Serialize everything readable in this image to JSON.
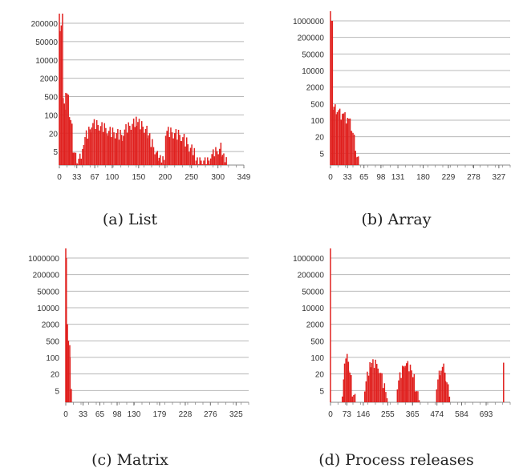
{
  "chart_data": [
    {
      "type": "bar",
      "panel": "a",
      "caption": "(a) List",
      "y_scale": "log",
      "ytick_labels": [
        "5",
        "20",
        "100",
        "500",
        "2000",
        "10000",
        "50000",
        "200000"
      ],
      "xtick_labels": [
        "0",
        "33",
        "67",
        "100",
        "150",
        "200",
        "250",
        "300",
        "349"
      ],
      "xtick_values": [
        0,
        33,
        67,
        100,
        150,
        200,
        250,
        300,
        349
      ],
      "xlim": [
        0,
        349
      ],
      "bar_color": "#e0201e",
      "segments": [
        {
          "x": [
            0,
            6
          ],
          "y": [
            200000,
            200000
          ]
        },
        {
          "x": [
            6,
            11
          ],
          "y": [
            800,
            120
          ]
        },
        {
          "x": [
            11,
            18
          ],
          "y": [
            1200,
            300
          ]
        },
        {
          "x": [
            18,
            25
          ],
          "y": [
            150,
            20
          ]
        },
        {
          "x": [
            25,
            33
          ],
          "y": [
            8,
            2
          ]
        },
        {
          "x": [
            33,
            45
          ],
          "y": [
            2,
            6
          ]
        },
        {
          "x": [
            45,
            60
          ],
          "y": [
            15,
            40
          ]
        },
        {
          "x": [
            60,
            90
          ],
          "y": [
            60,
            35
          ]
        },
        {
          "x": [
            90,
            120
          ],
          "y": [
            30,
            20
          ]
        },
        {
          "x": [
            120,
            145
          ],
          "y": [
            30,
            70
          ]
        },
        {
          "x": [
            145,
            165
          ],
          "y": [
            70,
            30
          ]
        },
        {
          "x": [
            165,
            185
          ],
          "y": [
            25,
            4
          ]
        },
        {
          "x": [
            185,
            200
          ],
          "y": [
            3,
            2
          ]
        },
        {
          "x": [
            200,
            230
          ],
          "y": [
            30,
            20
          ]
        },
        {
          "x": [
            230,
            255
          ],
          "y": [
            20,
            5
          ]
        },
        {
          "x": [
            255,
            285
          ],
          "y": [
            2,
            2
          ]
        },
        {
          "x": [
            285,
            305
          ],
          "y": [
            4,
            8
          ]
        },
        {
          "x": [
            305,
            315
          ],
          "y": [
            5,
            2
          ]
        }
      ]
    },
    {
      "type": "bar",
      "panel": "b",
      "caption": "(b) Array",
      "y_scale": "log",
      "ytick_labels": [
        "5",
        "20",
        "100",
        "500",
        "2000",
        "10000",
        "50000",
        "200000",
        "1000000"
      ],
      "xtick_labels": [
        "0",
        "33",
        "65",
        "98",
        "131",
        "180",
        "229",
        "278",
        "327"
      ],
      "xtick_values": [
        0,
        33,
        65,
        98,
        131,
        180,
        229,
        278,
        327
      ],
      "xlim": [
        0,
        349
      ],
      "bar_color": "#e0201e",
      "segments": [
        {
          "x": [
            0,
            3
          ],
          "y": [
            1000000,
            1000000
          ]
        },
        {
          "x": [
            3,
            12
          ],
          "y": [
            500,
            300
          ]
        },
        {
          "x": [
            12,
            22
          ],
          "y": [
            400,
            150
          ]
        },
        {
          "x": [
            22,
            32
          ],
          "y": [
            300,
            100
          ]
        },
        {
          "x": [
            32,
            40
          ],
          "y": [
            200,
            60
          ]
        },
        {
          "x": [
            40,
            48
          ],
          "y": [
            60,
            10
          ]
        },
        {
          "x": [
            48,
            55
          ],
          "y": [
            5,
            2
          ]
        }
      ]
    },
    {
      "type": "bar",
      "panel": "c",
      "caption": "(c) Matrix",
      "y_scale": "log",
      "ytick_labels": [
        "5",
        "20",
        "100",
        "500",
        "2000",
        "10000",
        "50000",
        "200000",
        "1000000"
      ],
      "xtick_labels": [
        "0",
        "33",
        "65",
        "98",
        "130",
        "179",
        "228",
        "276",
        "325"
      ],
      "xtick_values": [
        0,
        33,
        65,
        98,
        130,
        179,
        228,
        276,
        325
      ],
      "xlim": [
        0,
        349
      ],
      "bar_color": "#e0201e",
      "segments": [
        {
          "x": [
            0,
            2
          ],
          "y": [
            1000000,
            1000000
          ]
        },
        {
          "x": [
            2,
            4
          ],
          "y": [
            2000,
            2000
          ]
        },
        {
          "x": [
            4,
            7
          ],
          "y": [
            500,
            300
          ]
        },
        {
          "x": [
            7,
            10
          ],
          "y": [
            100,
            3
          ]
        }
      ]
    },
    {
      "type": "bar",
      "panel": "d",
      "caption": "(d) Process releases",
      "y_scale": "log",
      "ytick_labels": [
        "5",
        "20",
        "100",
        "500",
        "2000",
        "10000",
        "50000",
        "200000",
        "1000000"
      ],
      "xtick_labels": [
        "0",
        "73",
        "146",
        "255",
        "365",
        "474",
        "584",
        "693"
      ],
      "xtick_values": [
        0,
        73,
        146,
        255,
        365,
        474,
        584,
        693
      ],
      "xlim": [
        0,
        800
      ],
      "bar_color": "#e0201e",
      "segments": [
        {
          "x": [
            50,
            60
          ],
          "y": [
            4,
            40
          ]
        },
        {
          "x": [
            60,
            78
          ],
          "y": [
            100,
            120
          ]
        },
        {
          "x": [
            78,
            95
          ],
          "y": [
            50,
            8
          ]
        },
        {
          "x": [
            95,
            112
          ],
          "y": [
            4,
            2
          ]
        },
        {
          "x": [
            150,
            175
          ],
          "y": [
            8,
            60
          ]
        },
        {
          "x": [
            175,
            215
          ],
          "y": [
            70,
            60
          ]
        },
        {
          "x": [
            215,
            250
          ],
          "y": [
            40,
            3
          ]
        },
        {
          "x": [
            295,
            330
          ],
          "y": [
            10,
            70
          ]
        },
        {
          "x": [
            330,
            375
          ],
          "y": [
            80,
            20
          ]
        },
        {
          "x": [
            375,
            395
          ],
          "y": [
            8,
            2
          ]
        },
        {
          "x": [
            470,
            490
          ],
          "y": [
            10,
            40
          ]
        },
        {
          "x": [
            490,
            510
          ],
          "y": [
            50,
            40
          ]
        },
        {
          "x": [
            510,
            530
          ],
          "y": [
            20,
            3
          ]
        },
        {
          "x": [
            768,
            771
          ],
          "y": [
            60,
            60
          ]
        }
      ]
    }
  ]
}
